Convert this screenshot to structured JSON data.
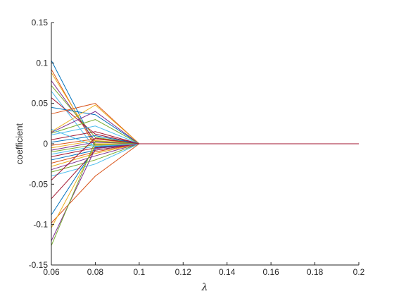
{
  "chart_data": {
    "type": "line",
    "xlabel": "λ",
    "ylabel": "coefficient",
    "xlim": [
      0.06,
      0.2
    ],
    "ylim": [
      -0.15,
      0.15
    ],
    "x": [
      0.06,
      0.08,
      0.1,
      0.2
    ],
    "xticks": [
      "0.06",
      "0.08",
      "0.1",
      "0.12",
      "0.14",
      "0.16",
      "0.18",
      "0.2"
    ],
    "xtick_values": [
      0.06,
      0.08,
      0.1,
      0.12,
      0.14,
      0.16,
      0.18,
      0.2
    ],
    "yticks": [
      "-0.15",
      "-0.1",
      "-0.05",
      "0",
      "0.05",
      "0.1",
      "0.15"
    ],
    "ytick_values": [
      -0.15,
      -0.1,
      -0.05,
      0,
      0.05,
      0.1,
      0.15
    ],
    "grid": false,
    "colors": [
      "#0072BD",
      "#D95319",
      "#EDB120",
      "#7E2F8E",
      "#77AC30",
      "#4DBEEE",
      "#A2142F"
    ],
    "series": [
      {
        "values": [
          0.103,
          -0.002,
          0,
          0
        ]
      },
      {
        "values": [
          0.092,
          -0.004,
          0,
          0
        ]
      },
      {
        "values": [
          0.088,
          0.0,
          0,
          0
        ]
      },
      {
        "values": [
          0.078,
          0.003,
          0,
          0
        ]
      },
      {
        "values": [
          0.072,
          0.008,
          0,
          0
        ]
      },
      {
        "values": [
          0.065,
          -0.006,
          0,
          0
        ]
      },
      {
        "values": [
          0.057,
          0.012,
          0,
          0
        ]
      },
      {
        "values": [
          0.045,
          0.036,
          0,
          0
        ]
      },
      {
        "values": [
          0.037,
          0.05,
          0,
          0
        ]
      },
      {
        "values": [
          0.015,
          0.048,
          0,
          0
        ]
      },
      {
        "values": [
          0.014,
          0.04,
          0,
          0
        ]
      },
      {
        "values": [
          0.013,
          0.03,
          0,
          0
        ]
      },
      {
        "values": [
          0.011,
          0.022,
          0,
          0
        ]
      },
      {
        "values": [
          0.005,
          0.015,
          0,
          0
        ]
      },
      {
        "values": [
          0.002,
          0.01,
          0,
          0
        ]
      },
      {
        "values": [
          -0.002,
          0.006,
          0,
          0
        ]
      },
      {
        "values": [
          -0.005,
          0.004,
          0,
          0
        ]
      },
      {
        "values": [
          -0.008,
          0.002,
          0,
          0
        ]
      },
      {
        "values": [
          -0.01,
          -0.001,
          0,
          0
        ]
      },
      {
        "values": [
          -0.013,
          -0.003,
          0,
          0
        ]
      },
      {
        "values": [
          -0.016,
          -0.005,
          0,
          0
        ]
      },
      {
        "values": [
          -0.02,
          -0.008,
          0,
          0
        ]
      },
      {
        "values": [
          -0.024,
          -0.01,
          0,
          0
        ]
      },
      {
        "values": [
          -0.028,
          -0.012,
          0,
          0
        ]
      },
      {
        "values": [
          -0.032,
          -0.015,
          0,
          0
        ]
      },
      {
        "values": [
          -0.035,
          -0.02,
          0,
          0
        ]
      },
      {
        "values": [
          -0.04,
          -0.025,
          0,
          0
        ]
      },
      {
        "values": [
          -0.068,
          -0.008,
          0,
          0
        ]
      },
      {
        "values": [
          -0.088,
          -0.004,
          0,
          0
        ]
      },
      {
        "values": [
          -0.098,
          -0.04,
          0,
          0
        ]
      },
      {
        "values": [
          -0.104,
          -0.002,
          0,
          0
        ]
      },
      {
        "values": [
          -0.12,
          -0.006,
          0,
          0
        ]
      },
      {
        "values": [
          -0.126,
          0.003,
          0,
          0
        ]
      },
      {
        "values": [
          0.018,
          -0.003,
          0,
          0
        ]
      },
      {
        "values": [
          -0.045,
          0.007,
          0,
          0
        ]
      }
    ]
  }
}
